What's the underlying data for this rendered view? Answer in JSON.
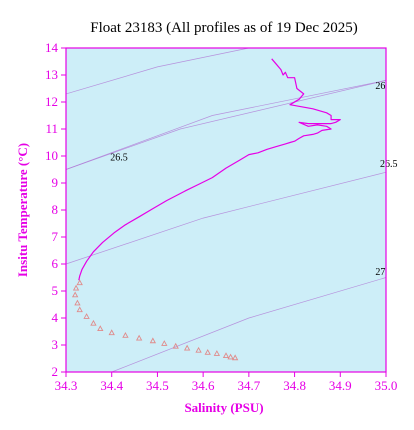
{
  "chart_data": {
    "type": "scatter",
    "title": "Float 23183  (All profiles as of 19 Dec 2025)",
    "xlabel": "Salinity (PSU)",
    "ylabel": "Insitu Temperature (°C)",
    "xlim": [
      34.3,
      35.0
    ],
    "ylim": [
      2,
      14
    ],
    "xticks": [
      "34.3",
      "34.4",
      "34.5",
      "34.6",
      "34.7",
      "34.8",
      "34.9",
      "35.0"
    ],
    "yticks": [
      "2",
      "3",
      "4",
      "5",
      "6",
      "7",
      "8",
      "9",
      "10",
      "11",
      "12",
      "13",
      "14"
    ],
    "grid": false,
    "colors": {
      "axis": "#e600e6",
      "plot_background": "#cdeef8",
      "profile": "#e600e6",
      "deep_points": "#e08a8a",
      "contour": "#b07ad6"
    },
    "contours": [
      {
        "label": "26.5",
        "points": [
          [
            34.3,
            9.5
          ],
          [
            34.55,
            11.0
          ],
          [
            35.0,
            12.8
          ]
        ]
      },
      {
        "label": "26",
        "points": [
          [
            34.3,
            12.3
          ],
          [
            34.5,
            13.3
          ],
          [
            34.7,
            14.0
          ]
        ]
      },
      {
        "label": "26.5",
        "points": [
          [
            34.3,
            9.5
          ],
          [
            34.62,
            11.5
          ],
          [
            35.0,
            12.8
          ]
        ]
      },
      {
        "label": "27",
        "points": [
          [
            34.3,
            6.0
          ],
          [
            34.6,
            7.7
          ],
          [
            35.0,
            9.4
          ]
        ]
      },
      {
        "label": "27",
        "points": [
          [
            34.4,
            2.0
          ],
          [
            34.7,
            4.0
          ],
          [
            35.0,
            5.5
          ]
        ]
      }
    ],
    "contour_labels": [
      {
        "text": "26",
        "x": 34.99,
        "y": 12.6
      },
      {
        "text": "26.5",
        "x": 34.41,
        "y": 9.95
      },
      {
        "text": "26.5",
        "x": 35.0,
        "y": 9.7
      },
      {
        "text": "27",
        "x": 34.99,
        "y": 5.7
      }
    ],
    "series": [
      {
        "kind": "line",
        "points": [
          [
            34.75,
            13.6
          ],
          [
            34.76,
            13.4
          ],
          [
            34.77,
            13.2
          ],
          [
            34.775,
            13.0
          ],
          [
            34.78,
            13.1
          ],
          [
            34.785,
            12.9
          ],
          [
            34.8,
            12.9
          ],
          [
            34.805,
            12.5
          ],
          [
            34.82,
            12.3
          ],
          [
            34.81,
            12.1
          ],
          [
            34.79,
            11.9
          ],
          [
            34.84,
            11.75
          ],
          [
            34.87,
            11.6
          ],
          [
            34.88,
            11.5
          ],
          [
            34.88,
            11.35
          ],
          [
            34.9,
            11.35
          ],
          [
            34.89,
            11.25
          ],
          [
            34.88,
            11.2
          ],
          [
            34.83,
            11.2
          ],
          [
            34.81,
            11.25
          ],
          [
            34.83,
            11.1
          ],
          [
            34.85,
            11.15
          ],
          [
            34.87,
            11.1
          ],
          [
            34.88,
            11.0
          ],
          [
            34.86,
            10.95
          ],
          [
            34.85,
            10.85
          ],
          [
            34.84,
            10.8
          ],
          [
            34.82,
            10.75
          ],
          [
            34.81,
            10.65
          ],
          [
            34.8,
            10.55
          ],
          [
            34.79,
            10.5
          ],
          [
            34.78,
            10.45
          ],
          [
            34.76,
            10.35
          ],
          [
            34.74,
            10.25
          ],
          [
            34.72,
            10.12
          ],
          [
            34.7,
            10.05
          ],
          [
            34.68,
            9.85
          ],
          [
            34.65,
            9.55
          ],
          [
            34.62,
            9.2
          ],
          [
            34.59,
            8.95
          ],
          [
            34.56,
            8.7
          ],
          [
            34.52,
            8.35
          ],
          [
            34.49,
            8.05
          ],
          [
            34.46,
            7.75
          ],
          [
            34.43,
            7.45
          ],
          [
            34.405,
            7.15
          ],
          [
            34.38,
            6.8
          ],
          [
            34.36,
            6.45
          ],
          [
            34.345,
            6.1
          ],
          [
            34.335,
            5.8
          ],
          [
            34.33,
            5.55
          ],
          [
            34.328,
            5.4
          ]
        ]
      },
      {
        "kind": "points",
        "points": [
          [
            34.33,
            5.3
          ],
          [
            34.322,
            5.1
          ],
          [
            34.32,
            4.85
          ],
          [
            34.325,
            4.55
          ],
          [
            34.33,
            4.3
          ],
          [
            34.345,
            4.05
          ],
          [
            34.36,
            3.8
          ],
          [
            34.375,
            3.6
          ],
          [
            34.4,
            3.45
          ],
          [
            34.43,
            3.35
          ],
          [
            34.46,
            3.25
          ],
          [
            34.49,
            3.15
          ],
          [
            34.515,
            3.05
          ],
          [
            34.54,
            2.95
          ],
          [
            34.565,
            2.88
          ],
          [
            34.59,
            2.8
          ],
          [
            34.61,
            2.72
          ],
          [
            34.63,
            2.68
          ],
          [
            34.65,
            2.6
          ],
          [
            34.66,
            2.55
          ],
          [
            34.67,
            2.52
          ]
        ]
      }
    ]
  }
}
